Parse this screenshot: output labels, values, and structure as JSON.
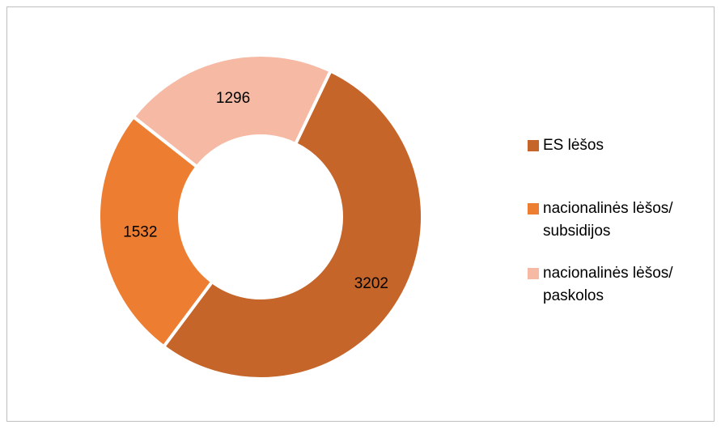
{
  "chart_data": {
    "type": "donut",
    "categories": [
      "ES lėšos",
      "nacionalinės lėšos/ subsidijos",
      "nacionalinės lėšos/ paskolos"
    ],
    "values": [
      3202,
      1532,
      1296
    ],
    "colors": [
      "#c5652a",
      "#ed7d31",
      "#f5b9a4"
    ],
    "legend": "right"
  }
}
